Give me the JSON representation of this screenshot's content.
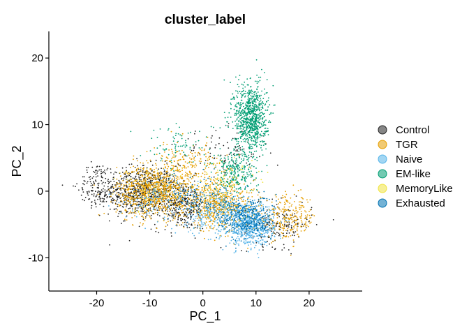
{
  "chart_data": {
    "type": "scatter",
    "title": "cluster_label",
    "xlabel": "PC_1",
    "ylabel": "PC_2",
    "xlim": [
      -29,
      30
    ],
    "ylim": [
      -15,
      24
    ],
    "x_ticks": [
      -20,
      -10,
      0,
      10,
      20
    ],
    "y_ticks": [
      -10,
      0,
      10,
      20
    ],
    "x_tick_labels": [
      "-20",
      "-10",
      "0",
      "10",
      "20"
    ],
    "y_tick_labels": [
      "-10",
      "0",
      "10",
      "20"
    ],
    "grid": false,
    "legend_position": "right",
    "series": [
      {
        "name": "Control",
        "color": "#222222",
        "clusters": [
          {
            "center": [
              -12,
              0
            ],
            "spread": [
              6.5,
              3.5
            ],
            "n": 700
          },
          {
            "center": [
              -4,
              -2
            ],
            "spread": [
              5,
              3.5
            ],
            "n": 350
          },
          {
            "center": [
              -20,
              1
            ],
            "spread": [
              3,
              3
            ],
            "n": 120
          },
          {
            "center": [
              14,
              -5
            ],
            "spread": [
              6,
              3
            ],
            "n": 180
          },
          {
            "center": [
              4,
              6
            ],
            "spread": [
              8,
              3
            ],
            "n": 80
          }
        ]
      },
      {
        "name": "TGR",
        "color": "#E69F00",
        "clusters": [
          {
            "center": [
              -9,
              0
            ],
            "spread": [
              6.5,
              3.5
            ],
            "n": 900
          },
          {
            "center": [
              3,
              -2
            ],
            "spread": [
              6,
              3.5
            ],
            "n": 600
          },
          {
            "center": [
              16,
              -4
            ],
            "spread": [
              5,
              3
            ],
            "n": 250
          },
          {
            "center": [
              -3,
              4
            ],
            "spread": [
              6,
              3
            ],
            "n": 200
          }
        ]
      },
      {
        "name": "Naive",
        "color": "#56B4E9",
        "clusters": [
          {
            "center": [
              9,
              -5
            ],
            "spread": [
              4,
              2.8
            ],
            "n": 700
          },
          {
            "center": [
              2,
              -3
            ],
            "spread": [
              5,
              3
            ],
            "n": 250
          },
          {
            "center": [
              -8,
              -1
            ],
            "spread": [
              6,
              3
            ],
            "n": 120
          }
        ]
      },
      {
        "name": "EM-like",
        "color": "#009E73",
        "clusters": [
          {
            "center": [
              9,
              11
            ],
            "spread": [
              2.8,
              4.8
            ],
            "n": 850
          },
          {
            "center": [
              6,
              3
            ],
            "spread": [
              3.5,
              3
            ],
            "n": 250
          },
          {
            "center": [
              -4,
              7
            ],
            "spread": [
              7,
              3
            ],
            "n": 80
          }
        ]
      },
      {
        "name": "MemoryLike",
        "color": "#F0E442",
        "clusters": [
          {
            "center": [
              3,
              1
            ],
            "spread": [
              8,
              4
            ],
            "n": 90
          },
          {
            "center": [
              -10,
              0
            ],
            "spread": [
              6,
              3
            ],
            "n": 40
          }
        ]
      },
      {
        "name": "Exhausted",
        "color": "#0072B2",
        "clusters": [
          {
            "center": [
              8,
              -4
            ],
            "spread": [
              4.5,
              3
            ],
            "n": 350
          },
          {
            "center": [
              0,
              -1
            ],
            "spread": [
              6,
              3
            ],
            "n": 120
          }
        ]
      }
    ]
  }
}
